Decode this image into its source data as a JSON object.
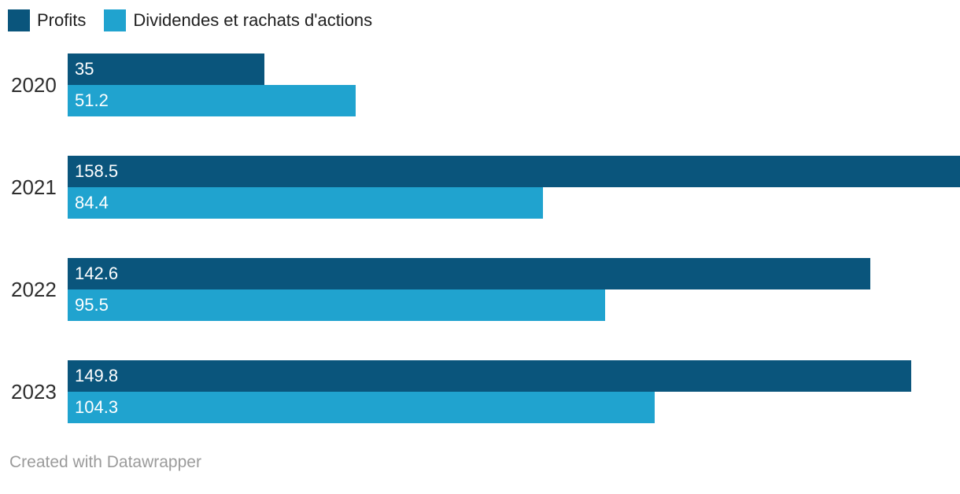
{
  "legend": {
    "items": [
      {
        "label": "Profits",
        "color": "#0a557c"
      },
      {
        "label": "Dividendes et rachats d'actions",
        "color": "#20a3cf"
      }
    ]
  },
  "chart_data": {
    "type": "bar",
    "orientation": "horizontal",
    "categories": [
      "2020",
      "2021",
      "2022",
      "2023"
    ],
    "series": [
      {
        "name": "Profits",
        "color": "#0a557c",
        "values": [
          35,
          158.5,
          142.6,
          149.8
        ]
      },
      {
        "name": "Dividendes et rachats d'actions",
        "color": "#20a3cf",
        "values": [
          51.2,
          84.4,
          95.5,
          104.3
        ]
      }
    ],
    "value_labels": "inside-start",
    "value_label_color": "#ffffff",
    "xlim": [
      0,
      158.5
    ],
    "grid": false,
    "legend_position": "top"
  },
  "footer": {
    "credit": "Created with Datawrapper"
  }
}
